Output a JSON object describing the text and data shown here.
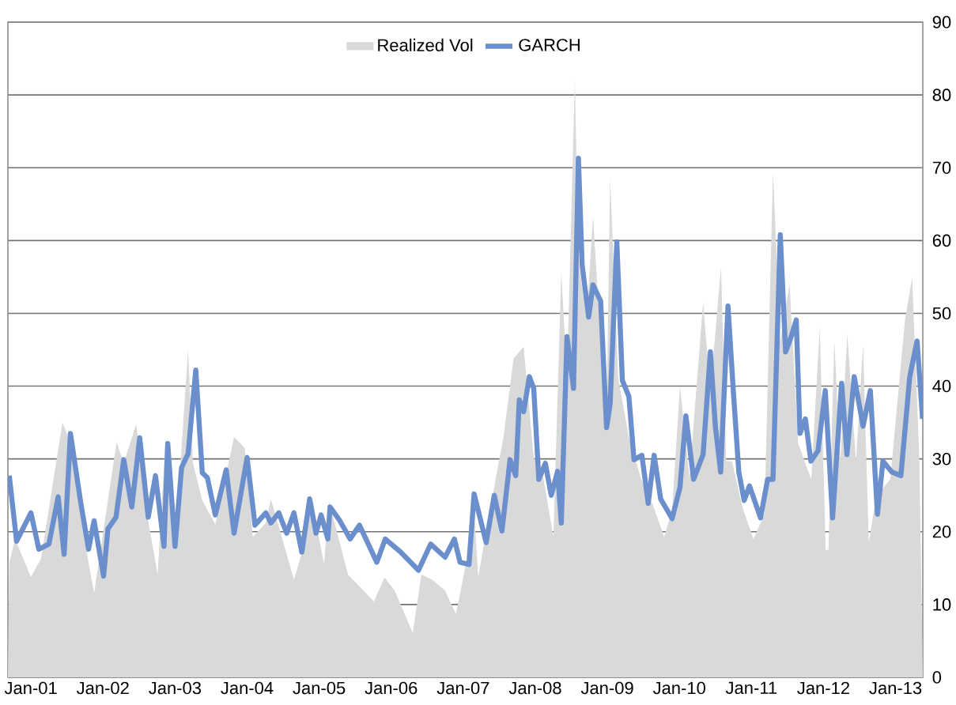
{
  "chart_data": {
    "type": "line",
    "xlim": [
      "2000-09-06",
      "2013-05-19"
    ],
    "ylim": [
      0,
      90
    ],
    "xticks": [
      {
        "value": "2001-01-01",
        "label": "Jan-01"
      },
      {
        "value": "2002-01-01",
        "label": "Jan-02"
      },
      {
        "value": "2003-01-01",
        "label": "Jan-03"
      },
      {
        "value": "2004-01-01",
        "label": "Jan-04"
      },
      {
        "value": "2005-01-01",
        "label": "Jan-05"
      },
      {
        "value": "2006-01-01",
        "label": "Jan-06"
      },
      {
        "value": "2007-01-01",
        "label": "Jan-07"
      },
      {
        "value": "2008-01-01",
        "label": "Jan-08"
      },
      {
        "value": "2009-01-01",
        "label": "Jan-09"
      },
      {
        "value": "2010-01-01",
        "label": "Jan-10"
      },
      {
        "value": "2011-01-01",
        "label": "Jan-11"
      },
      {
        "value": "2012-01-01",
        "label": "Jan-12"
      },
      {
        "value": "2013-01-01",
        "label": "Jan-13"
      }
    ],
    "yticks": [
      0,
      10,
      20,
      30,
      40,
      50,
      60,
      70,
      80,
      90
    ],
    "grid": "y",
    "legend": "top",
    "series": [
      {
        "name": "Realized Vol",
        "type": "area",
        "color": "#d9d9d9",
        "x": [
          "2000-09-06",
          "2000-09-13",
          "2000-10-12",
          "2001-01-01",
          "2001-02-21",
          "2001-06-10",
          "2001-07-09",
          "2001-10-20",
          "2001-11-17",
          "2002-03-11",
          "2002-04-16",
          "2002-06-18",
          "2002-08-14",
          "2002-10-05",
          "2002-11-14",
          "2003-01-01",
          "2003-03-08",
          "2003-04-02",
          "2003-05-19",
          "2003-07-24",
          "2003-10-27",
          "2003-12-20",
          "2004-01-30",
          "2004-04-05",
          "2004-05-01",
          "2004-08-26",
          "2004-10-09",
          "2004-11-17",
          "2005-01-26",
          "2005-02-21",
          "2005-05-27",
          "2005-08-14",
          "2005-10-05",
          "2005-11-28",
          "2006-01-19",
          "2006-04-20",
          "2006-06-03",
          "2006-07-27",
          "2006-10-01",
          "2006-11-25",
          "2007-01-15",
          "2007-02-18",
          "2007-03-18",
          "2007-05-16",
          "2007-07-24",
          "2007-09-13",
          "2007-11-03",
          "2007-12-24",
          "2008-02-10",
          "2008-04-02",
          "2008-05-12",
          "2008-06-10",
          "2008-07-20",
          "2008-08-07",
          "2008-09-17",
          "2008-10-20",
          "2008-11-28",
          "2008-12-28",
          "2009-01-15",
          "2009-02-25",
          "2009-04-20",
          "2009-06-18",
          "2009-08-18",
          "2009-10-16",
          "2009-11-25",
          "2010-01-04",
          "2010-02-21",
          "2010-05-01",
          "2010-06-07",
          "2010-07-31",
          "2010-08-26",
          "2010-09-24",
          "2010-11-17",
          "2011-01-11",
          "2011-03-08",
          "2011-04-20",
          "2011-05-27",
          "2011-07-13",
          "2011-08-26",
          "2011-10-31",
          "2011-12-13",
          "2012-01-12",
          "2012-01-26",
          "2012-02-25",
          "2012-03-26",
          "2012-05-01",
          "2012-06-14",
          "2012-07-20",
          "2012-08-18",
          "2012-09-24",
          "2012-12-05",
          "2013-02-18",
          "2013-03-26",
          "2013-05-01",
          "2013-05-19"
        ],
        "values": [
          0,
          15.7,
          19.0,
          13.8,
          16.3,
          35.0,
          33.0,
          15.7,
          11.6,
          32.3,
          29.4,
          34.8,
          22.1,
          14.1,
          33.0,
          18.1,
          45.0,
          29.4,
          24.3,
          21.0,
          33.0,
          31.5,
          19.3,
          21.2,
          24.5,
          13.4,
          17.4,
          25.2,
          15.6,
          24.1,
          14.1,
          11.9,
          10.4,
          13.7,
          11.9,
          6.1,
          14.1,
          13.4,
          11.9,
          8.7,
          15.6,
          25.9,
          13.8,
          23.0,
          33.0,
          43.8,
          45.4,
          30.2,
          27.5,
          19.3,
          55.7,
          41.1,
          82.3,
          57.3,
          49.2,
          63.3,
          46.5,
          35.6,
          68.7,
          41.1,
          33.0,
          27.5,
          23.8,
          19.3,
          23.0,
          40.0,
          27.5,
          51.5,
          39.4,
          56.4,
          29.7,
          29.7,
          23.3,
          19.0,
          22.4,
          69.5,
          46.2,
          54.0,
          32.1,
          27.2,
          48.1,
          17.5,
          17.5,
          46.2,
          29.7,
          47.2,
          29.7,
          45.7,
          18.5,
          24.8,
          27.2,
          49.1,
          54.9,
          30.6,
          0
        ]
      },
      {
        "name": "GARCH",
        "color": "#6a8fcc",
        "x": [
          "2000-09-13",
          "2000-10-20",
          "2001-01-01",
          "2001-02-10",
          "2001-04-02",
          "2001-05-19",
          "2001-06-18",
          "2001-07-20",
          "2001-09-09",
          "2001-10-20",
          "2001-11-17",
          "2002-01-04",
          "2002-01-26",
          "2002-03-08",
          "2002-04-16",
          "2002-05-27",
          "2002-07-06",
          "2002-08-18",
          "2002-09-24",
          "2002-11-06",
          "2002-11-25",
          "2003-01-01",
          "2003-02-03",
          "2003-03-08",
          "2003-04-16",
          "2003-05-19",
          "2003-06-14",
          "2003-07-24",
          "2003-09-17",
          "2003-10-27",
          "2004-01-01",
          "2004-02-10",
          "2004-04-05",
          "2004-05-01",
          "2004-06-10",
          "2004-07-20",
          "2004-08-26",
          "2004-10-05",
          "2004-11-14",
          "2004-12-16",
          "2005-01-11",
          "2005-02-14",
          "2005-02-25",
          "2005-04-16",
          "2005-06-07",
          "2005-07-24",
          "2005-10-20",
          "2005-12-02",
          "2006-02-18",
          "2006-05-19",
          "2006-07-20",
          "2006-10-01",
          "2006-11-17",
          "2006-12-16",
          "2007-01-30",
          "2007-02-25",
          "2007-04-27",
          "2007-06-07",
          "2007-07-16",
          "2007-08-26",
          "2007-09-24",
          "2007-10-12",
          "2007-11-03",
          "2007-12-02",
          "2007-12-24",
          "2008-01-19",
          "2008-02-21",
          "2008-03-22",
          "2008-04-23",
          "2008-05-12",
          "2008-06-10",
          "2008-07-13",
          "2008-08-07",
          "2008-08-26",
          "2008-09-28",
          "2008-10-20",
          "2008-11-28",
          "2008-12-28",
          "2009-01-15",
          "2009-02-18",
          "2009-03-18",
          "2009-04-20",
          "2009-05-16",
          "2009-06-25",
          "2009-07-27",
          "2009-08-26",
          "2009-09-28",
          "2009-11-25",
          "2010-01-04",
          "2010-02-03",
          "2010-03-14",
          "2010-05-01",
          "2010-06-07",
          "2010-07-02",
          "2010-07-29",
          "2010-09-04",
          "2010-10-01",
          "2010-10-29",
          "2010-11-25",
          "2010-12-22",
          "2011-02-16",
          "2011-03-24",
          "2011-04-20",
          "2011-05-27",
          "2011-06-23",
          "2011-07-20",
          "2011-08-16",
          "2011-09-04",
          "2011-10-01",
          "2011-10-29",
          "2011-12-04",
          "2012-01-10",
          "2012-02-16",
          "2012-04-02",
          "2012-04-29",
          "2012-06-05",
          "2012-07-20",
          "2012-08-26",
          "2012-10-01",
          "2012-10-29",
          "2012-12-13",
          "2013-01-28",
          "2013-03-14",
          "2013-04-20",
          "2013-05-18"
        ],
        "values": [
          27.7,
          18.7,
          22.6,
          17.6,
          18.3,
          24.8,
          16.9,
          33.5,
          24.2,
          17.6,
          21.5,
          13.9,
          20.4,
          22.0,
          29.9,
          23.4,
          32.9,
          22.0,
          27.7,
          18.0,
          32.1,
          18.0,
          28.8,
          30.7,
          42.2,
          28.1,
          27.4,
          22.3,
          28.5,
          19.8,
          30.2,
          20.9,
          22.6,
          21.2,
          22.6,
          19.8,
          22.6,
          17.2,
          24.5,
          19.8,
          22.3,
          19.0,
          23.4,
          21.5,
          19.0,
          20.9,
          15.8,
          19.0,
          17.2,
          14.7,
          18.3,
          16.5,
          19.0,
          15.8,
          15.5,
          25.2,
          18.5,
          25.0,
          20.1,
          29.9,
          27.7,
          38.1,
          36.5,
          41.3,
          39.7,
          27.2,
          29.4,
          25.0,
          28.3,
          21.2,
          46.8,
          39.7,
          71.3,
          56.6,
          49.5,
          53.9,
          51.7,
          34.3,
          37.5,
          59.8,
          40.8,
          38.6,
          29.9,
          30.5,
          23.9,
          30.5,
          24.5,
          21.8,
          26.1,
          35.9,
          27.2,
          30.6,
          44.7,
          34.5,
          28.2,
          51.0,
          39.4,
          28.2,
          24.3,
          26.3,
          21.9,
          27.2,
          27.2,
          60.8,
          44.7,
          46.7,
          49.1,
          33.5,
          35.5,
          29.7,
          31.1,
          39.4,
          21.9,
          40.4,
          30.6,
          41.3,
          34.5,
          39.4,
          22.4,
          29.7,
          28.2,
          27.7,
          41.3,
          46.2,
          35.5
        ]
      }
    ]
  }
}
